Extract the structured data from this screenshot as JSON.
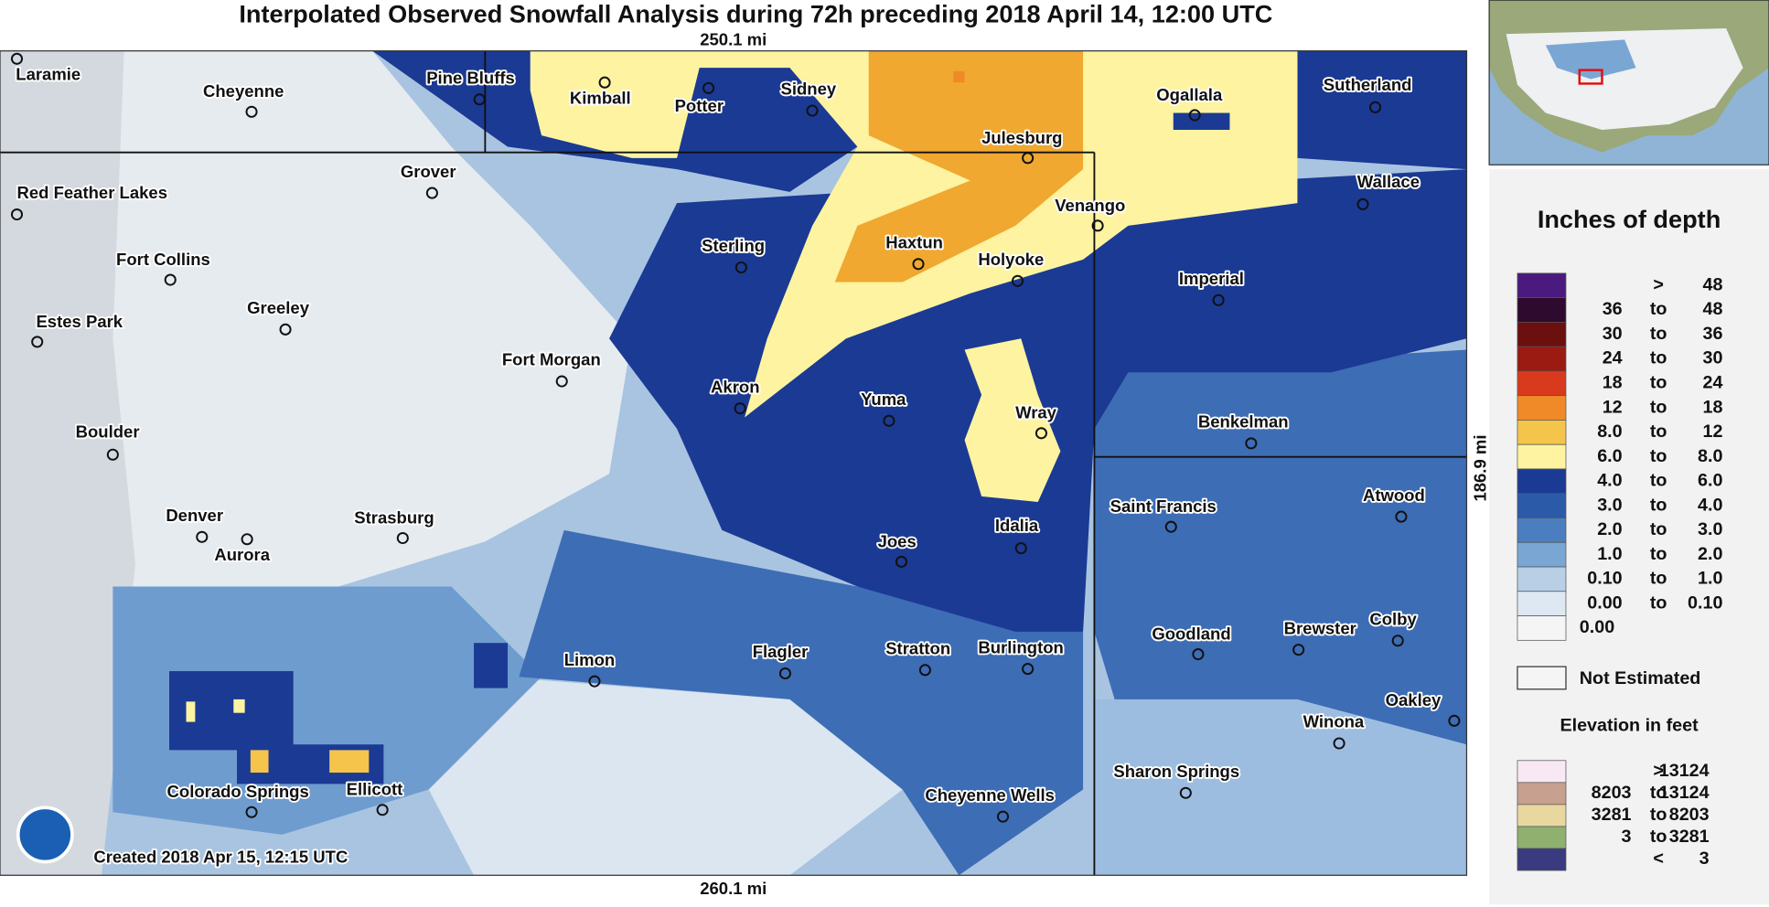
{
  "header": {
    "title": "Interpolated Observed Snowfall Analysis during 72h preceding 2018 April 14, 12:00 UTC"
  },
  "map": {
    "scale_top": "250.1 mi",
    "scale_bottom": "260.1 mi",
    "scale_right": "186.9 mi",
    "created": "Created 2018 Apr 15, 12:15 UTC",
    "cities": [
      "Laramie",
      "Cheyenne",
      "Pine Bluffs",
      "Kimball",
      "Potter",
      "Sidney",
      "Ogallala",
      "Sutherland",
      "Julesburg",
      "Wallace",
      "Venango",
      "Grover",
      "Red Feather Lakes",
      "Fort Collins",
      "Sterling",
      "Haxtun",
      "Holyoke",
      "Imperial",
      "Greeley",
      "Estes Park",
      "Fort Morgan",
      "Akron",
      "Yuma",
      "Wray",
      "Benkelman",
      "Boulder",
      "Saint Francis",
      "Atwood",
      "Denver",
      "Aurora",
      "Strasburg",
      "Joes",
      "Idalia",
      "Goodland",
      "Brewster",
      "Colby",
      "Limon",
      "Flagler",
      "Stratton",
      "Burlington",
      "Oakley",
      "Winona",
      "Sharon Springs",
      "Cheyenne Wells",
      "Colorado Springs",
      "Ellicott"
    ]
  },
  "legend": {
    "depth_title": "Inches of depth",
    "depth_rows": [
      {
        "sep": ">",
        "high": "48",
        "color": "#4a1a7e"
      },
      {
        "low": "36",
        "sep": "to",
        "high": "48",
        "color": "#2e0a2e"
      },
      {
        "low": "30",
        "sep": "to",
        "high": "36",
        "color": "#6b0f0f"
      },
      {
        "low": "24",
        "sep": "to",
        "high": "30",
        "color": "#9b1a12"
      },
      {
        "low": "18",
        "sep": "to",
        "high": "24",
        "color": "#d93a1e"
      },
      {
        "low": "12",
        "sep": "to",
        "high": "18",
        "color": "#f08a28"
      },
      {
        "low": "8.0",
        "sep": "to",
        "high": "12",
        "color": "#f5c44a"
      },
      {
        "low": "6.0",
        "sep": "to",
        "high": "8.0",
        "color": "#fdf3a0"
      },
      {
        "low": "4.0",
        "sep": "to",
        "high": "6.0",
        "color": "#1b3a94"
      },
      {
        "low": "3.0",
        "sep": "to",
        "high": "4.0",
        "color": "#2a5aa8"
      },
      {
        "low": "2.0",
        "sep": "to",
        "high": "3.0",
        "color": "#4a7ebf"
      },
      {
        "low": "1.0",
        "sep": "to",
        "high": "2.0",
        "color": "#7aa6d4"
      },
      {
        "low": "0.10",
        "sep": "to",
        "high": "1.0",
        "color": "#b8cfe6"
      },
      {
        "low": "0.00",
        "sep": "to",
        "high": "0.10",
        "color": "#dde8f2"
      },
      {
        "low": "0.00",
        "color": "#f5f5f5"
      }
    ],
    "not_estimated": "Not Estimated",
    "elevation_title": "Elevation in feet",
    "elevation_rows": [
      {
        "sep": ">",
        "high": "13124",
        "color": "#f8e8f4"
      },
      {
        "low": "8203",
        "sep": "to",
        "high": "13124",
        "color": "#c8a090"
      },
      {
        "low": "3281",
        "sep": "to",
        "high": "8203",
        "color": "#e8d8a0"
      },
      {
        "low": "3",
        "sep": "to",
        "high": "3281",
        "color": "#90b070"
      },
      {
        "sep": "<",
        "high": "3",
        "color": "#3a3a80"
      }
    ]
  }
}
